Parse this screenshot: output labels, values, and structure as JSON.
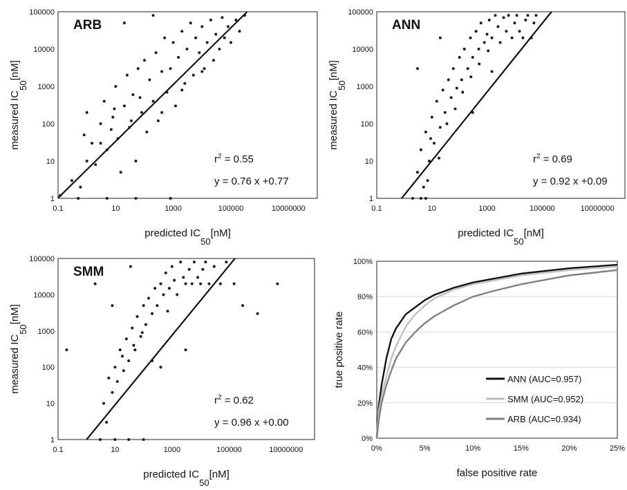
{
  "chart_data": [
    {
      "type": "scatter",
      "panel_label": "ARB",
      "xlabel": "predicted IC",
      "xlabel_sub": "50",
      "xlabel_unit": "[nM]",
      "ylabel": "measured IC",
      "ylabel_sub": "50",
      "ylabel_unit": "[nM]",
      "x_scale": "log",
      "y_scale": "log",
      "xlim": [
        0.1,
        100000000
      ],
      "ylim": [
        1,
        100000
      ],
      "x_ticks": [
        "0.1",
        "10",
        "1000",
        "100000",
        "10000000"
      ],
      "y_ticks": [
        "1",
        "10",
        "100",
        "1000",
        "10000",
        "100000"
      ],
      "r2_label": "r",
      "r2_sup": "2",
      "r2_value": " = 0.55",
      "fit_text": "y = 0.76 x +0.77",
      "fit_line": {
        "slope": 0.76,
        "intercept": 0.77
      },
      "scatter_points": [
        [
          0.12,
          1.2
        ],
        [
          0.3,
          3
        ],
        [
          0.5,
          1
        ],
        [
          0.8,
          50
        ],
        [
          1,
          200
        ],
        [
          1.5,
          30
        ],
        [
          2,
          8
        ],
        [
          3,
          100
        ],
        [
          4,
          400
        ],
        [
          5,
          20
        ],
        [
          8,
          150
        ],
        [
          10,
          1000
        ],
        [
          12,
          40
        ],
        [
          15,
          5
        ],
        [
          20,
          300
        ],
        [
          25,
          2000
        ],
        [
          30,
          80
        ],
        [
          40,
          600
        ],
        [
          50,
          10
        ],
        [
          60,
          3000
        ],
        [
          80,
          200
        ],
        [
          100,
          5000
        ],
        [
          120,
          60
        ],
        [
          150,
          1500
        ],
        [
          200,
          400
        ],
        [
          250,
          8000
        ],
        [
          300,
          120
        ],
        [
          400,
          2500
        ],
        [
          500,
          20000
        ],
        [
          600,
          700
        ],
        [
          800,
          3000
        ],
        [
          1000,
          15000
        ],
        [
          1200,
          300
        ],
        [
          1500,
          6000
        ],
        [
          2000,
          30000
        ],
        [
          2500,
          1200
        ],
        [
          3000,
          10000
        ],
        [
          4000,
          50000
        ],
        [
          5000,
          2000
        ],
        [
          6000,
          20000
        ],
        [
          8000,
          8000
        ],
        [
          10000,
          40000
        ],
        [
          12000,
          3000
        ],
        [
          15000,
          15000
        ],
        [
          20000,
          60000
        ],
        [
          25000,
          5000
        ],
        [
          30000,
          25000
        ],
        [
          40000,
          10000
        ],
        [
          50000,
          70000
        ],
        [
          60000,
          20000
        ],
        [
          80000,
          40000
        ],
        [
          100000,
          15000
        ],
        [
          150000,
          60000
        ],
        [
          200000,
          30000
        ],
        [
          300000,
          80000
        ],
        [
          50,
          1
        ],
        [
          5,
          1
        ],
        [
          800,
          1
        ],
        [
          20,
          50000
        ],
        [
          200,
          80000
        ],
        [
          3,
          30
        ],
        [
          1,
          10
        ],
        [
          7,
          70
        ],
        [
          0.6,
          2
        ],
        [
          400,
          200
        ],
        [
          2000,
          800
        ],
        [
          10000,
          2500
        ],
        [
          70,
          500
        ],
        [
          35,
          120
        ],
        [
          9,
          250
        ]
      ]
    },
    {
      "type": "scatter",
      "panel_label": "ANN",
      "xlabel": "predicted IC",
      "xlabel_sub": "50",
      "xlabel_unit": "[nM]",
      "ylabel": "measured IC",
      "ylabel_sub": "50",
      "ylabel_unit": "[nM]",
      "x_scale": "log",
      "y_scale": "log",
      "xlim": [
        0.1,
        100000000
      ],
      "ylim": [
        1,
        100000
      ],
      "x_ticks": [
        "0.1",
        "10",
        "1000",
        "100000",
        "10000000"
      ],
      "y_ticks": [
        "1",
        "10",
        "100",
        "1000",
        "10000",
        "100000"
      ],
      "r2_label": "r",
      "r2_sup": "2",
      "r2_value": " = 0.69",
      "fit_text": "y = 0.92 x +0.09",
      "fit_line": {
        "slope": 0.92,
        "intercept": 0.09
      },
      "scatter_points": [
        [
          2,
          1
        ],
        [
          3,
          5
        ],
        [
          4,
          20
        ],
        [
          5,
          2
        ],
        [
          6,
          60
        ],
        [
          8,
          10
        ],
        [
          10,
          150
        ],
        [
          12,
          30
        ],
        [
          15,
          400
        ],
        [
          20,
          80
        ],
        [
          25,
          800
        ],
        [
          30,
          200
        ],
        [
          40,
          1500
        ],
        [
          50,
          500
        ],
        [
          60,
          3000
        ],
        [
          80,
          900
        ],
        [
          100,
          6000
        ],
        [
          120,
          1500
        ],
        [
          150,
          10000
        ],
        [
          200,
          3000
        ],
        [
          250,
          20000
        ],
        [
          300,
          6000
        ],
        [
          400,
          30000
        ],
        [
          500,
          10000
        ],
        [
          600,
          50000
        ],
        [
          800,
          15000
        ],
        [
          1000,
          25000
        ],
        [
          1200,
          60000
        ],
        [
          1500,
          20000
        ],
        [
          2000,
          80000
        ],
        [
          2500,
          40000
        ],
        [
          3000,
          15000
        ],
        [
          4000,
          70000
        ],
        [
          5000,
          30000
        ],
        [
          6000,
          80000
        ],
        [
          8000,
          20000
        ],
        [
          10000,
          50000
        ],
        [
          12000,
          80000
        ],
        [
          15000,
          30000
        ],
        [
          20000,
          20000
        ],
        [
          25000,
          60000
        ],
        [
          30000,
          80000
        ],
        [
          40000,
          20000
        ],
        [
          50000,
          50000
        ],
        [
          60000,
          80000
        ],
        [
          7,
          3
        ],
        [
          9,
          40
        ],
        [
          18,
          12
        ],
        [
          35,
          100
        ],
        [
          70,
          250
        ],
        [
          130,
          700
        ],
        [
          260,
          1800
        ],
        [
          520,
          4000
        ],
        [
          1100,
          9000
        ],
        [
          4,
          1
        ],
        [
          6,
          1
        ],
        [
          3,
          3000
        ],
        [
          20,
          20000
        ],
        [
          300,
          200
        ],
        [
          1500,
          2500
        ]
      ]
    },
    {
      "type": "scatter",
      "panel_label": "SMM",
      "xlabel": "predicted IC",
      "xlabel_sub": "50",
      "xlabel_unit": "[nM]",
      "ylabel": "measured IC",
      "ylabel_sub": "50",
      "ylabel_unit": "[nM]",
      "x_scale": "log",
      "y_scale": "log",
      "xlim": [
        0.1,
        100000000
      ],
      "ylim": [
        1,
        100000
      ],
      "x_ticks": [
        "0.1",
        "10",
        "1000",
        "100000",
        "10000000"
      ],
      "y_ticks": [
        "1",
        "10",
        "100",
        "1000",
        "10000",
        "100000"
      ],
      "r2_label": "r",
      "r2_sup": "2",
      "r2_value": " = 0.62",
      "fit_text": "y = 0.96 x +0.00",
      "fit_line": {
        "slope": 0.96,
        "intercept": 0.0
      },
      "scatter_points": [
        [
          0.2,
          300
        ],
        [
          3,
          1
        ],
        [
          4,
          10
        ],
        [
          5,
          3
        ],
        [
          6,
          50
        ],
        [
          8,
          20
        ],
        [
          10,
          100
        ],
        [
          12,
          40
        ],
        [
          15,
          300
        ],
        [
          20,
          80
        ],
        [
          25,
          600
        ],
        [
          30,
          150
        ],
        [
          40,
          1200
        ],
        [
          50,
          300
        ],
        [
          60,
          2500
        ],
        [
          80,
          700
        ],
        [
          100,
          5000
        ],
        [
          120,
          1500
        ],
        [
          150,
          8000
        ],
        [
          200,
          3000
        ],
        [
          250,
          15000
        ],
        [
          300,
          5000
        ],
        [
          400,
          20000
        ],
        [
          500,
          10000
        ],
        [
          600,
          40000
        ],
        [
          800,
          15000
        ],
        [
          1000,
          60000
        ],
        [
          1200,
          25000
        ],
        [
          1500,
          10000
        ],
        [
          2000,
          80000
        ],
        [
          2500,
          30000
        ],
        [
          3000,
          20000
        ],
        [
          4000,
          50000
        ],
        [
          5000,
          20000
        ],
        [
          6000,
          80000
        ],
        [
          8000,
          30000
        ],
        [
          10000,
          20000
        ],
        [
          12000,
          50000
        ],
        [
          15000,
          80000
        ],
        [
          20000,
          20000
        ],
        [
          30000,
          60000
        ],
        [
          50000,
          20000
        ],
        [
          80000,
          80000
        ],
        [
          150000,
          20000
        ],
        [
          300000,
          5000
        ],
        [
          1000000,
          3000
        ],
        [
          5000000,
          20000
        ],
        [
          10,
          1
        ],
        [
          30,
          1
        ],
        [
          100,
          1
        ],
        [
          18,
          200
        ],
        [
          45,
          400
        ],
        [
          90,
          900
        ],
        [
          200,
          150
        ],
        [
          700,
          3500
        ],
        [
          35,
          60000
        ],
        [
          2,
          20000
        ],
        [
          8,
          5000
        ],
        [
          3000,
          300
        ],
        [
          400,
          100
        ]
      ]
    },
    {
      "type": "line",
      "xlabel": "false positive rate",
      "ylabel": "true positive rate",
      "xlim": [
        0,
        0.25
      ],
      "ylim": [
        0,
        1
      ],
      "x_ticks": [
        "0%",
        "5%",
        "10%",
        "15%",
        "20%",
        "25%"
      ],
      "y_ticks": [
        "0%",
        "20%",
        "40%",
        "60%",
        "80%",
        "100%"
      ],
      "legend_position": "bottom-right",
      "series": [
        {
          "name": "ANN (AUC=0.957)",
          "color": "#111111",
          "x": [
            0,
            0.002,
            0.005,
            0.01,
            0.015,
            0.02,
            0.03,
            0.04,
            0.05,
            0.06,
            0.08,
            0.1,
            0.12,
            0.15,
            0.2,
            0.25
          ],
          "y": [
            0,
            0.18,
            0.3,
            0.45,
            0.56,
            0.62,
            0.7,
            0.74,
            0.78,
            0.81,
            0.85,
            0.88,
            0.9,
            0.93,
            0.96,
            0.98
          ]
        },
        {
          "name": "SMM (AUC=0.952)",
          "color": "#c0c0c0",
          "x": [
            0,
            0.002,
            0.005,
            0.01,
            0.015,
            0.02,
            0.03,
            0.04,
            0.05,
            0.06,
            0.08,
            0.1,
            0.12,
            0.15,
            0.2,
            0.25
          ],
          "y": [
            0,
            0.15,
            0.24,
            0.35,
            0.45,
            0.52,
            0.63,
            0.7,
            0.75,
            0.79,
            0.84,
            0.87,
            0.89,
            0.92,
            0.95,
            0.97
          ]
        },
        {
          "name": "ARB (AUC=0.934)",
          "color": "#808080",
          "x": [
            0,
            0.002,
            0.005,
            0.01,
            0.015,
            0.02,
            0.03,
            0.04,
            0.05,
            0.06,
            0.08,
            0.1,
            0.12,
            0.15,
            0.2,
            0.25
          ],
          "y": [
            0,
            0.1,
            0.2,
            0.3,
            0.38,
            0.45,
            0.54,
            0.6,
            0.65,
            0.69,
            0.75,
            0.8,
            0.83,
            0.87,
            0.92,
            0.95
          ]
        }
      ]
    }
  ]
}
